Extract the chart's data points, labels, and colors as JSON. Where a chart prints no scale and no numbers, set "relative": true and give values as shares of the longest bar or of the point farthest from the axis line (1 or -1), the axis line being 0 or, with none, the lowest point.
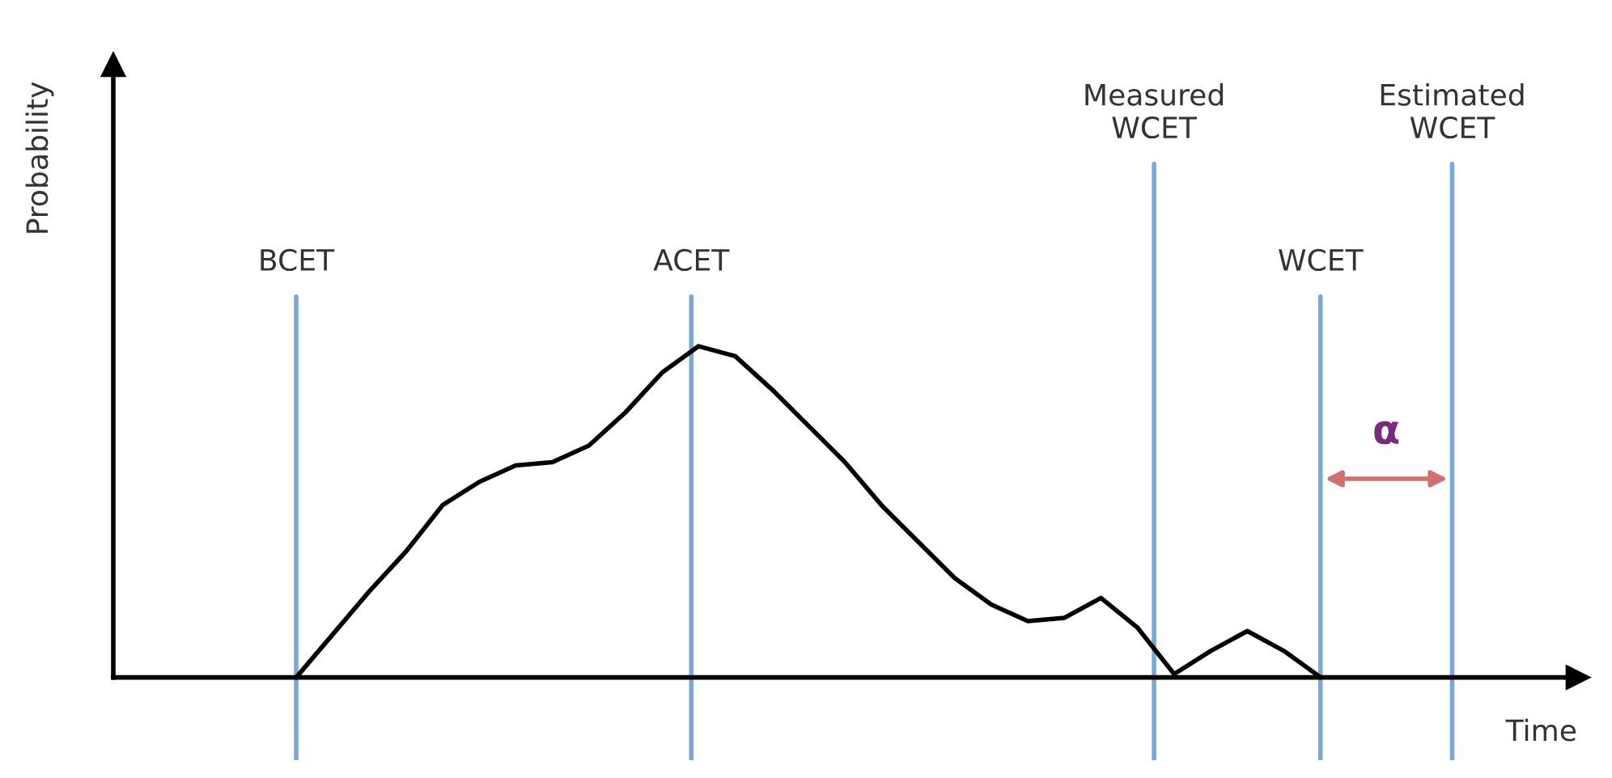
{
  "chart_data": {
    "type": "line",
    "relative": true,
    "categories": [
      null,
      null,
      null,
      null,
      null,
      null,
      null,
      null,
      null,
      null,
      null,
      null,
      null,
      null,
      null,
      null,
      null,
      null,
      null,
      null,
      null,
      null,
      null,
      null,
      null,
      null,
      null,
      null,
      null
    ],
    "series": [
      {
        "color": "#000000",
        "values": [
          0,
          0.13,
          0.26,
          0.38,
          0.52,
          0.59,
          0.64,
          0.65,
          0.7,
          0.8,
          0.92,
          1,
          0.97,
          0.87,
          0.76,
          0.65,
          0.52,
          0.41,
          0.3,
          0.22,
          0.17,
          0.18,
          0.24,
          0.15,
          0.01,
          0.08,
          0.14,
          0.08,
          0
        ]
      }
    ],
    "annotations": [
      "BCET",
      "ACET",
      "Measured\nWCET",
      "WCET",
      "Estimated\nWCET",
      "α",
      "Time",
      "Probability"
    ],
    "marker": "none",
    "line_style": "solid"
  }
}
